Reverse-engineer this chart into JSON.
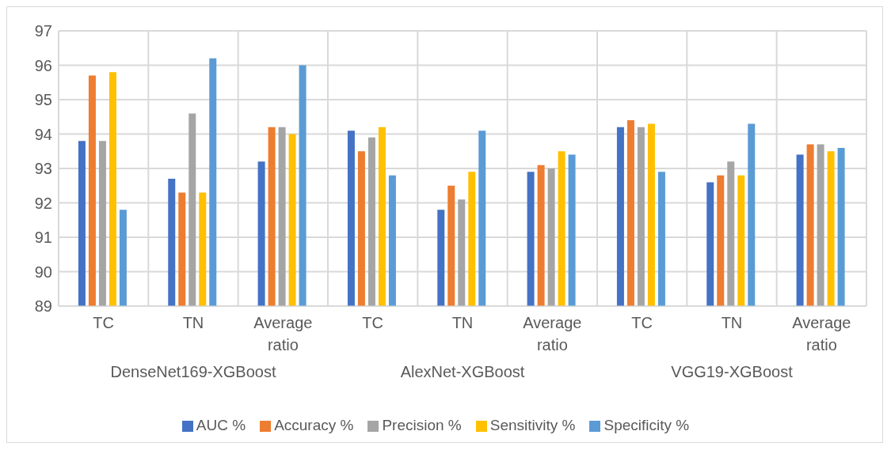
{
  "chart_data": {
    "type": "bar",
    "categories": [
      "TC",
      "TN",
      "Average ratio",
      "TC",
      "TN",
      "Average ratio",
      "TC",
      "TN",
      "Average ratio"
    ],
    "annotations": [
      "DenseNet169-XGBoost",
      "AlexNet-XGBoost",
      "VGG19-XGBoost"
    ],
    "series": [
      {
        "name": "AUC %",
        "color": "#4472c4",
        "values": [
          93.8,
          92.7,
          93.2,
          94.1,
          91.8,
          92.9,
          94.2,
          92.6,
          93.4
        ]
      },
      {
        "name": "Accuracy %",
        "color": "#ed7d31",
        "values": [
          95.7,
          92.3,
          94.2,
          93.5,
          92.5,
          93.1,
          94.4,
          92.8,
          93.7
        ]
      },
      {
        "name": "Precision %",
        "color": "#a5a5a5",
        "values": [
          93.8,
          94.6,
          94.2,
          93.9,
          92.1,
          93.0,
          94.2,
          93.2,
          93.7
        ]
      },
      {
        "name": "Sensitivity %",
        "color": "#ffc000",
        "values": [
          95.8,
          92.3,
          94.0,
          94.2,
          92.9,
          93.5,
          94.3,
          92.8,
          93.5
        ]
      },
      {
        "name": "Specificity %",
        "color": "#5b9bd5",
        "values": [
          91.8,
          96.2,
          96.0,
          92.8,
          94.1,
          93.4,
          92.9,
          94.3,
          93.6
        ]
      }
    ],
    "ylim": [
      89,
      97
    ],
    "yticks": [
      89,
      90,
      91,
      92,
      93,
      94,
      95,
      96,
      97
    ],
    "grid": true,
    "legend": "bottom"
  }
}
